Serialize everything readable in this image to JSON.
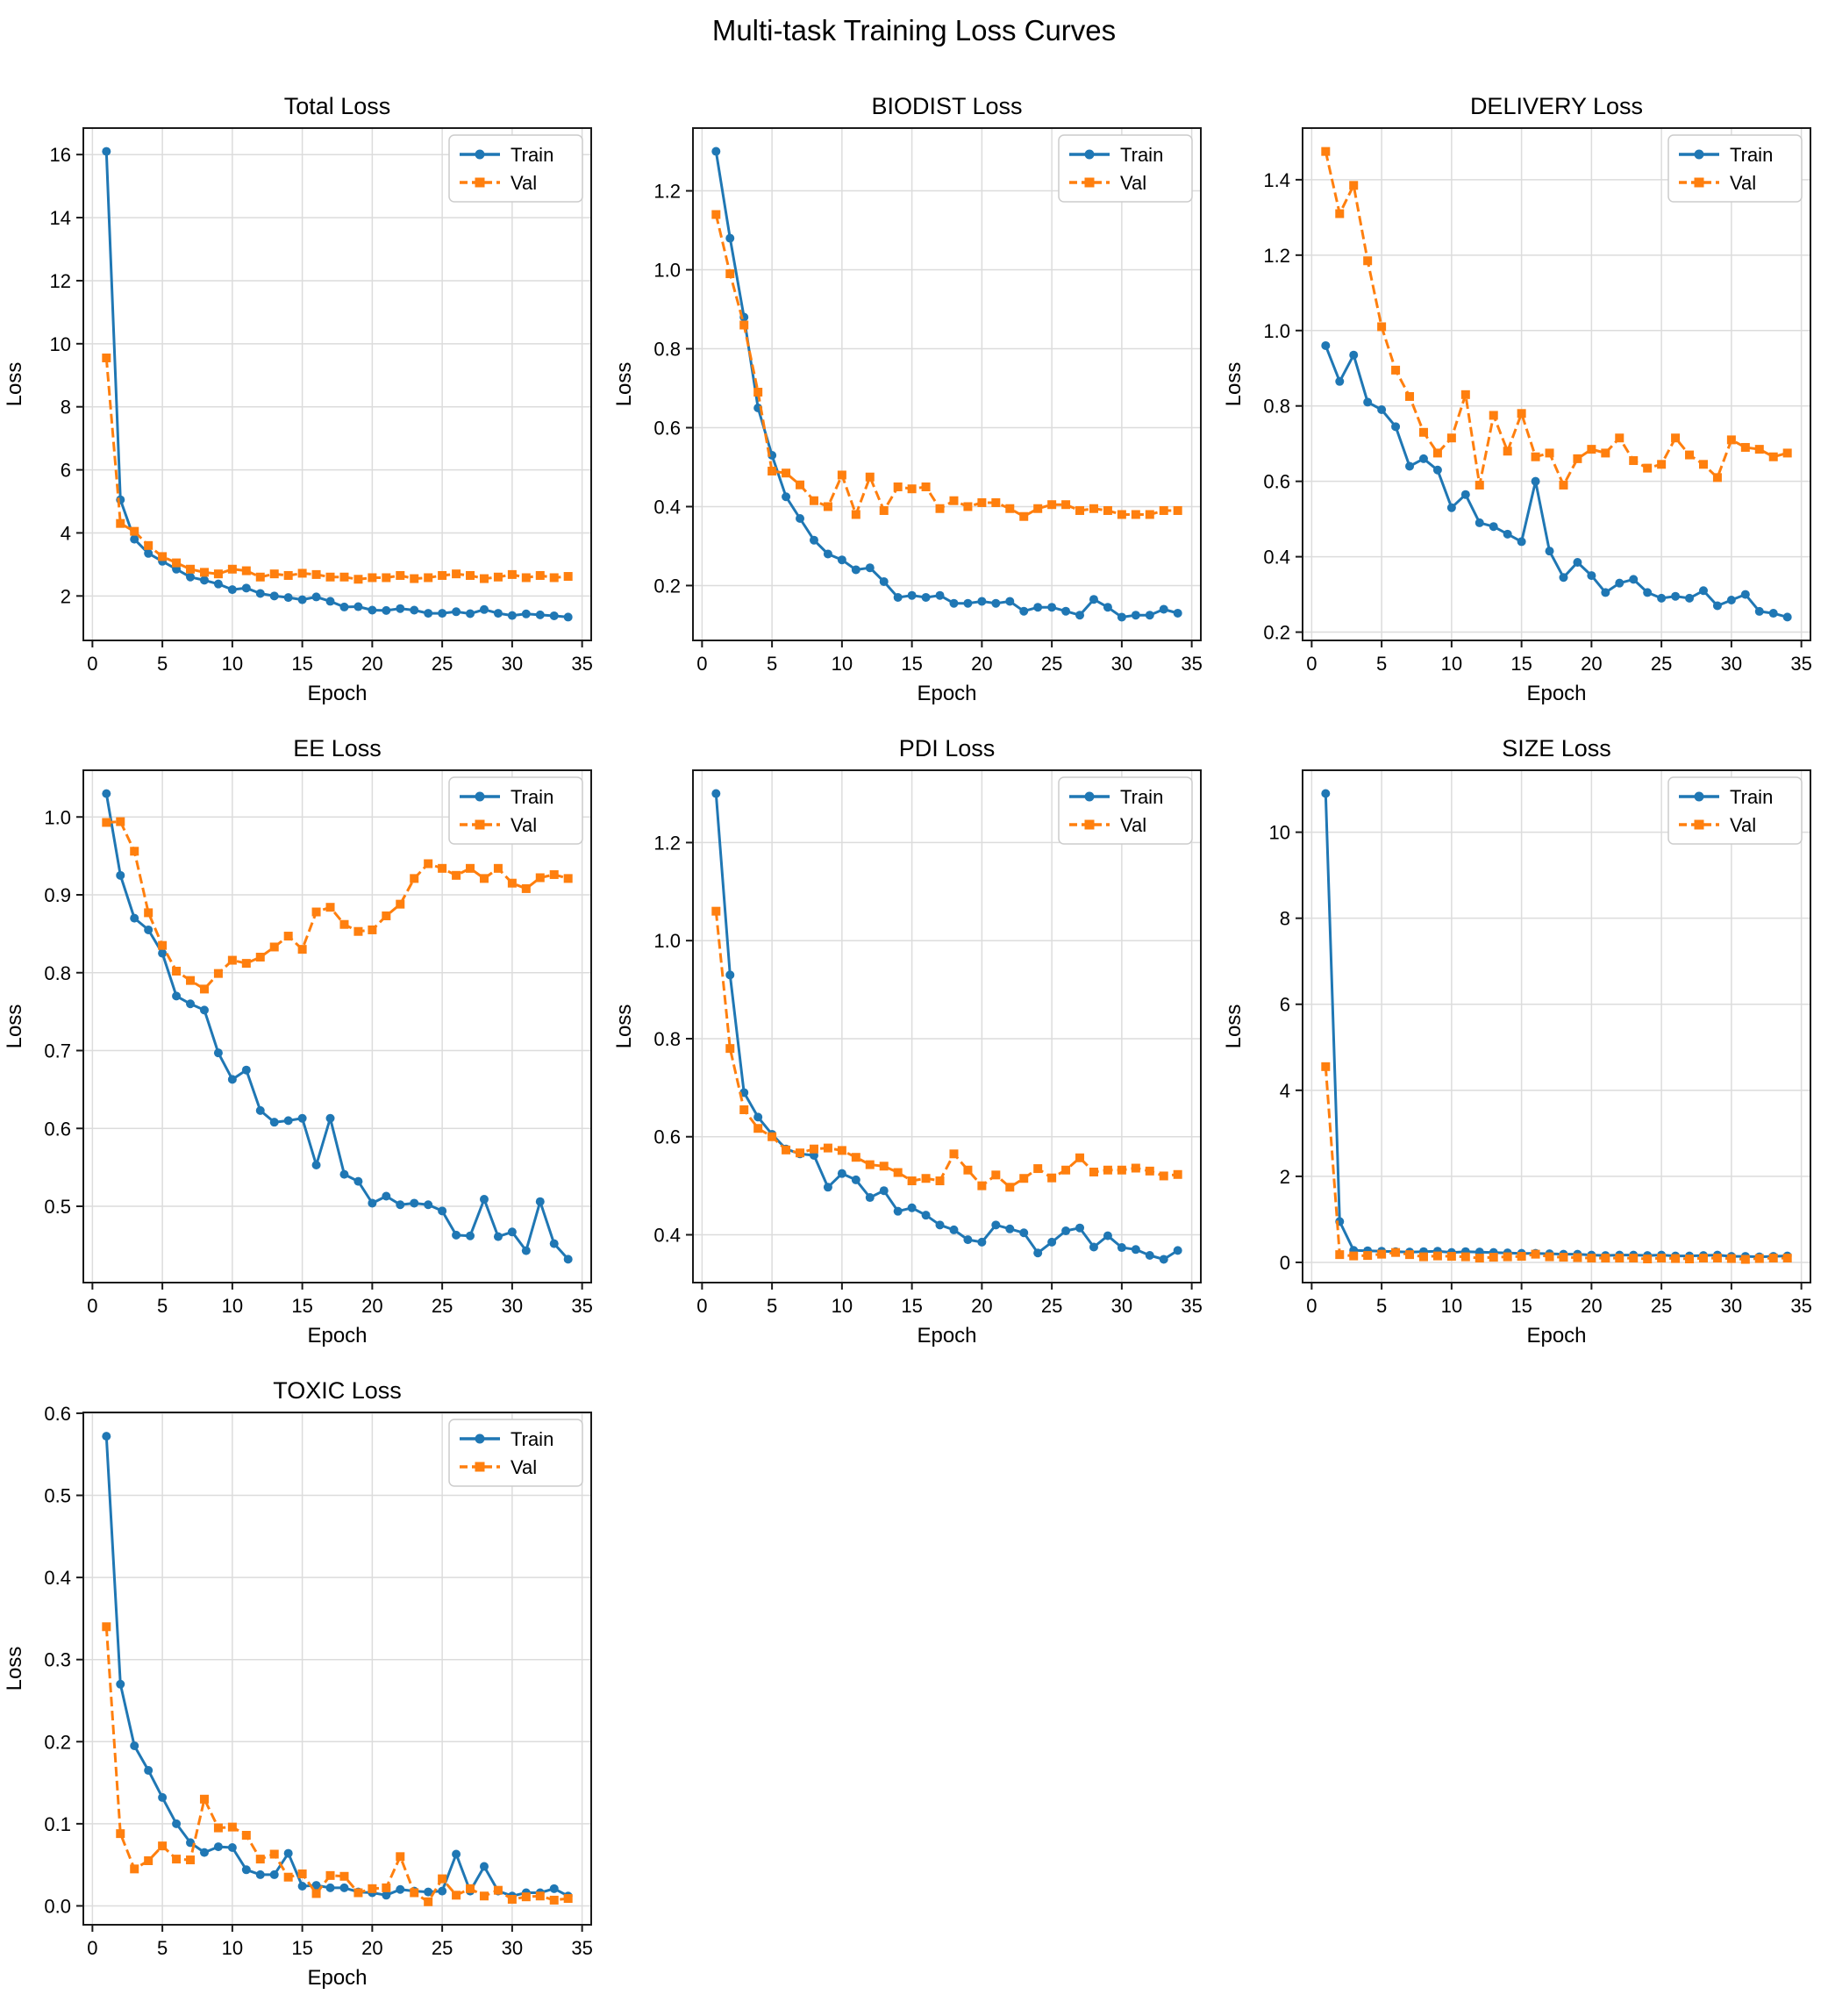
{
  "page": {
    "title": "Multi-task Training Loss Curves"
  },
  "style": {
    "train_color": "#1f77b4",
    "val_color": "#ff7f0e",
    "grid_color": "#dcdcdc",
    "axis_color": "#1a1a1a",
    "legend_border_color": "#cccccc",
    "background": "#ffffff"
  },
  "chart_data": [
    {
      "type": "line",
      "title": "Total Loss",
      "xlabel": "Epoch",
      "ylabel": "Loss",
      "grid": true,
      "legend_position": "upper right",
      "xlim": [
        -0.65,
        35.65
      ],
      "ylim": [
        0.59,
        16.84
      ],
      "xticks": [
        0,
        5,
        10,
        15,
        20,
        25,
        30,
        35
      ],
      "xtick_labels": [
        "0",
        "5",
        "10",
        "15",
        "20",
        "25",
        "30",
        "35"
      ],
      "yticks": [
        2,
        4,
        6,
        8,
        10,
        12,
        14,
        16
      ],
      "ytick_labels": [
        "2",
        "4",
        "6",
        "8",
        "10",
        "12",
        "14",
        "16"
      ],
      "x": [
        1,
        2,
        3,
        4,
        5,
        6,
        7,
        8,
        9,
        10,
        11,
        12,
        13,
        14,
        15,
        16,
        17,
        18,
        19,
        20,
        21,
        22,
        23,
        24,
        25,
        26,
        27,
        28,
        29,
        30,
        31,
        32,
        33,
        34
      ],
      "series": [
        {
          "name": "Train",
          "style": "solid",
          "marker": "circle",
          "color": "#1f77b4",
          "values": [
            16.1,
            5.05,
            3.8,
            3.35,
            3.1,
            2.85,
            2.6,
            2.5,
            2.38,
            2.2,
            2.25,
            2.08,
            2.0,
            1.95,
            1.88,
            1.97,
            1.83,
            1.65,
            1.66,
            1.55,
            1.54,
            1.6,
            1.55,
            1.45,
            1.45,
            1.5,
            1.44,
            1.57,
            1.45,
            1.38,
            1.43,
            1.4,
            1.37,
            1.33
          ]
        },
        {
          "name": "Val",
          "style": "dashed",
          "marker": "square",
          "color": "#ff7f0e",
          "values": [
            9.55,
            4.3,
            4.05,
            3.6,
            3.25,
            3.05,
            2.85,
            2.75,
            2.7,
            2.85,
            2.8,
            2.6,
            2.7,
            2.65,
            2.72,
            2.68,
            2.6,
            2.6,
            2.53,
            2.58,
            2.58,
            2.65,
            2.55,
            2.58,
            2.65,
            2.7,
            2.65,
            2.55,
            2.6,
            2.68,
            2.58,
            2.65,
            2.58,
            2.62
          ]
        }
      ]
    },
    {
      "type": "line",
      "title": "BIODIST Loss",
      "xlabel": "Epoch",
      "ylabel": "Loss",
      "grid": true,
      "legend_position": "upper right",
      "xlim": [
        -0.65,
        35.65
      ],
      "ylim": [
        0.061,
        1.359
      ],
      "xticks": [
        0,
        5,
        10,
        15,
        20,
        25,
        30,
        35
      ],
      "xtick_labels": [
        "0",
        "5",
        "10",
        "15",
        "20",
        "25",
        "30",
        "35"
      ],
      "yticks": [
        0.2,
        0.4,
        0.6,
        0.8,
        1.0,
        1.2
      ],
      "ytick_labels": [
        "0.2",
        "0.4",
        "0.6",
        "0.8",
        "1.0",
        "1.2"
      ],
      "x": [
        1,
        2,
        3,
        4,
        5,
        6,
        7,
        8,
        9,
        10,
        11,
        12,
        13,
        14,
        15,
        16,
        17,
        18,
        19,
        20,
        21,
        22,
        23,
        24,
        25,
        26,
        27,
        28,
        29,
        30,
        31,
        32,
        33,
        34
      ],
      "series": [
        {
          "name": "Train",
          "style": "solid",
          "marker": "circle",
          "color": "#1f77b4",
          "values": [
            1.3,
            1.08,
            0.88,
            0.65,
            0.53,
            0.425,
            0.37,
            0.315,
            0.28,
            0.265,
            0.24,
            0.245,
            0.21,
            0.17,
            0.175,
            0.17,
            0.175,
            0.155,
            0.155,
            0.16,
            0.155,
            0.16,
            0.135,
            0.145,
            0.145,
            0.135,
            0.125,
            0.165,
            0.145,
            0.12,
            0.125,
            0.125,
            0.14,
            0.13
          ]
        },
        {
          "name": "Val",
          "style": "dashed",
          "marker": "square",
          "color": "#ff7f0e",
          "values": [
            1.14,
            0.99,
            0.86,
            0.69,
            0.49,
            0.485,
            0.455,
            0.415,
            0.4,
            0.48,
            0.38,
            0.475,
            0.39,
            0.45,
            0.445,
            0.45,
            0.395,
            0.415,
            0.4,
            0.41,
            0.41,
            0.395,
            0.375,
            0.395,
            0.405,
            0.405,
            0.39,
            0.395,
            0.39,
            0.38,
            0.38,
            0.38,
            0.39,
            0.39
          ]
        }
      ]
    },
    {
      "type": "line",
      "title": "DELIVERY Loss",
      "xlabel": "Epoch",
      "ylabel": "Loss",
      "grid": true,
      "legend_position": "upper right",
      "xlim": [
        -0.65,
        35.65
      ],
      "ylim": [
        0.178,
        1.537
      ],
      "xticks": [
        0,
        5,
        10,
        15,
        20,
        25,
        30,
        35
      ],
      "xtick_labels": [
        "0",
        "5",
        "10",
        "15",
        "20",
        "25",
        "30",
        "35"
      ],
      "yticks": [
        0.2,
        0.4,
        0.6,
        0.8,
        1.0,
        1.2,
        1.4
      ],
      "ytick_labels": [
        "0.2",
        "0.4",
        "0.6",
        "0.8",
        "1.0",
        "1.2",
        "1.4"
      ],
      "x": [
        1,
        2,
        3,
        4,
        5,
        6,
        7,
        8,
        9,
        10,
        11,
        12,
        13,
        14,
        15,
        16,
        17,
        18,
        19,
        20,
        21,
        22,
        23,
        24,
        25,
        26,
        27,
        28,
        29,
        30,
        31,
        32,
        33,
        34
      ],
      "series": [
        {
          "name": "Train",
          "style": "solid",
          "marker": "circle",
          "color": "#1f77b4",
          "values": [
            0.96,
            0.865,
            0.935,
            0.81,
            0.79,
            0.745,
            0.64,
            0.66,
            0.63,
            0.53,
            0.565,
            0.49,
            0.48,
            0.46,
            0.44,
            0.6,
            0.415,
            0.345,
            0.385,
            0.35,
            0.305,
            0.33,
            0.34,
            0.305,
            0.29,
            0.295,
            0.29,
            0.31,
            0.27,
            0.285,
            0.3,
            0.255,
            0.25,
            0.24
          ]
        },
        {
          "name": "Val",
          "style": "dashed",
          "marker": "square",
          "color": "#ff7f0e",
          "values": [
            1.475,
            1.31,
            1.385,
            1.185,
            1.01,
            0.895,
            0.825,
            0.73,
            0.675,
            0.715,
            0.83,
            0.59,
            0.775,
            0.68,
            0.78,
            0.665,
            0.675,
            0.59,
            0.66,
            0.685,
            0.675,
            0.715,
            0.655,
            0.635,
            0.645,
            0.715,
            0.67,
            0.645,
            0.61,
            0.71,
            0.69,
            0.685,
            0.665,
            0.675
          ]
        }
      ]
    },
    {
      "type": "line",
      "title": "EE Loss",
      "xlabel": "Epoch",
      "ylabel": "Loss",
      "grid": true,
      "legend_position": "upper right",
      "xlim": [
        -0.65,
        35.65
      ],
      "ylim": [
        0.402,
        1.06
      ],
      "xticks": [
        0,
        5,
        10,
        15,
        20,
        25,
        30,
        35
      ],
      "xtick_labels": [
        "0",
        "5",
        "10",
        "15",
        "20",
        "25",
        "30",
        "35"
      ],
      "yticks": [
        0.5,
        0.6,
        0.7,
        0.8,
        0.9,
        1.0
      ],
      "ytick_labels": [
        "0.5",
        "0.6",
        "0.7",
        "0.8",
        "0.9",
        "1.0"
      ],
      "x": [
        1,
        2,
        3,
        4,
        5,
        6,
        7,
        8,
        9,
        10,
        11,
        12,
        13,
        14,
        15,
        16,
        17,
        18,
        19,
        20,
        21,
        22,
        23,
        24,
        25,
        26,
        27,
        28,
        29,
        30,
        31,
        32,
        33,
        34
      ],
      "series": [
        {
          "name": "Train",
          "style": "solid",
          "marker": "circle",
          "color": "#1f77b4",
          "values": [
            1.03,
            0.925,
            0.87,
            0.855,
            0.825,
            0.77,
            0.76,
            0.752,
            0.697,
            0.663,
            0.675,
            0.623,
            0.608,
            0.61,
            0.613,
            0.553,
            0.613,
            0.541,
            0.532,
            0.504,
            0.513,
            0.502,
            0.504,
            0.502,
            0.494,
            0.463,
            0.462,
            0.509,
            0.461,
            0.467,
            0.443,
            0.506,
            0.452,
            0.432
          ]
        },
        {
          "name": "Val",
          "style": "dashed",
          "marker": "square",
          "color": "#ff7f0e",
          "values": [
            0.993,
            0.994,
            0.956,
            0.877,
            0.835,
            0.802,
            0.79,
            0.779,
            0.799,
            0.816,
            0.812,
            0.82,
            0.833,
            0.847,
            0.83,
            0.878,
            0.884,
            0.862,
            0.853,
            0.855,
            0.873,
            0.888,
            0.921,
            0.94,
            0.934,
            0.925,
            0.934,
            0.921,
            0.934,
            0.915,
            0.908,
            0.922,
            0.926,
            0.921
          ]
        }
      ]
    },
    {
      "type": "line",
      "title": "PDI Loss",
      "xlabel": "Epoch",
      "ylabel": "Loss",
      "grid": true,
      "legend_position": "upper right",
      "xlim": [
        -0.65,
        35.65
      ],
      "ylim": [
        0.3025,
        1.3475
      ],
      "xticks": [
        0,
        5,
        10,
        15,
        20,
        25,
        30,
        35
      ],
      "xtick_labels": [
        "0",
        "5",
        "10",
        "15",
        "20",
        "25",
        "30",
        "35"
      ],
      "yticks": [
        0.4,
        0.6,
        0.8,
        1.0,
        1.2
      ],
      "ytick_labels": [
        "0.4",
        "0.6",
        "0.8",
        "1.0",
        "1.2"
      ],
      "x": [
        1,
        2,
        3,
        4,
        5,
        6,
        7,
        8,
        9,
        10,
        11,
        12,
        13,
        14,
        15,
        16,
        17,
        18,
        19,
        20,
        21,
        22,
        23,
        24,
        25,
        26,
        27,
        28,
        29,
        30,
        31,
        32,
        33,
        34
      ],
      "series": [
        {
          "name": "Train",
          "style": "solid",
          "marker": "circle",
          "color": "#1f77b4",
          "values": [
            1.3,
            0.93,
            0.69,
            0.64,
            0.605,
            0.575,
            0.565,
            0.562,
            0.497,
            0.525,
            0.512,
            0.476,
            0.49,
            0.448,
            0.455,
            0.44,
            0.42,
            0.41,
            0.39,
            0.385,
            0.42,
            0.412,
            0.404,
            0.363,
            0.385,
            0.408,
            0.414,
            0.375,
            0.398,
            0.374,
            0.37,
            0.358,
            0.35,
            0.368
          ]
        },
        {
          "name": "Val",
          "style": "dashed",
          "marker": "square",
          "color": "#ff7f0e",
          "values": [
            1.06,
            0.78,
            0.655,
            0.617,
            0.6,
            0.573,
            0.567,
            0.575,
            0.577,
            0.572,
            0.558,
            0.543,
            0.54,
            0.527,
            0.51,
            0.515,
            0.51,
            0.565,
            0.532,
            0.5,
            0.522,
            0.497,
            0.515,
            0.535,
            0.516,
            0.532,
            0.557,
            0.528,
            0.532,
            0.532,
            0.536,
            0.53,
            0.52,
            0.523
          ]
        }
      ]
    },
    {
      "type": "line",
      "title": "SIZE Loss",
      "xlabel": "Epoch",
      "ylabel": "Loss",
      "grid": true,
      "legend_position": "upper right",
      "xlim": [
        -0.65,
        35.65
      ],
      "ylim": [
        -0.47,
        11.44
      ],
      "xticks": [
        0,
        5,
        10,
        15,
        20,
        25,
        30,
        35
      ],
      "xtick_labels": [
        "0",
        "5",
        "10",
        "15",
        "20",
        "25",
        "30",
        "35"
      ],
      "yticks": [
        0,
        2,
        4,
        6,
        8,
        10
      ],
      "ytick_labels": [
        "0",
        "2",
        "4",
        "6",
        "8",
        "10"
      ],
      "x": [
        1,
        2,
        3,
        4,
        5,
        6,
        7,
        8,
        9,
        10,
        11,
        12,
        13,
        14,
        15,
        16,
        17,
        18,
        19,
        20,
        21,
        22,
        23,
        24,
        25,
        26,
        27,
        28,
        29,
        30,
        31,
        32,
        33,
        34
      ],
      "series": [
        {
          "name": "Train",
          "style": "solid",
          "marker": "circle",
          "color": "#1f77b4",
          "values": [
            10.9,
            0.95,
            0.28,
            0.27,
            0.26,
            0.25,
            0.24,
            0.25,
            0.26,
            0.23,
            0.25,
            0.24,
            0.23,
            0.22,
            0.21,
            0.21,
            0.2,
            0.19,
            0.19,
            0.17,
            0.16,
            0.17,
            0.17,
            0.16,
            0.17,
            0.15,
            0.15,
            0.16,
            0.17,
            0.14,
            0.14,
            0.13,
            0.14,
            0.15
          ]
        },
        {
          "name": "Val",
          "style": "dashed",
          "marker": "square",
          "color": "#ff7f0e",
          "values": [
            4.55,
            0.18,
            0.15,
            0.16,
            0.19,
            0.23,
            0.18,
            0.13,
            0.15,
            0.14,
            0.13,
            0.1,
            0.12,
            0.13,
            0.14,
            0.19,
            0.13,
            0.12,
            0.11,
            0.1,
            0.1,
            0.1,
            0.1,
            0.08,
            0.1,
            0.09,
            0.08,
            0.1,
            0.1,
            0.09,
            0.07,
            0.09,
            0.1,
            0.1
          ]
        }
      ]
    },
    {
      "type": "line",
      "title": "TOXIC Loss",
      "xlabel": "Epoch",
      "ylabel": "Loss",
      "grid": true,
      "legend_position": "upper right",
      "xlim": [
        -0.65,
        35.65
      ],
      "ylim": [
        -0.023,
        0.601
      ],
      "xticks": [
        0,
        5,
        10,
        15,
        20,
        25,
        30,
        35
      ],
      "xtick_labels": [
        "0",
        "5",
        "10",
        "15",
        "20",
        "25",
        "30",
        "35"
      ],
      "yticks": [
        0.0,
        0.1,
        0.2,
        0.3,
        0.4,
        0.5,
        0.6
      ],
      "ytick_labels": [
        "0.0",
        "0.1",
        "0.2",
        "0.3",
        "0.4",
        "0.5",
        "0.6"
      ],
      "x": [
        1,
        2,
        3,
        4,
        5,
        6,
        7,
        8,
        9,
        10,
        11,
        12,
        13,
        14,
        15,
        16,
        17,
        18,
        19,
        20,
        21,
        22,
        23,
        24,
        25,
        26,
        27,
        28,
        29,
        30,
        31,
        32,
        33,
        34
      ],
      "series": [
        {
          "name": "Train",
          "style": "solid",
          "marker": "circle",
          "color": "#1f77b4",
          "values": [
            0.572,
            0.27,
            0.195,
            0.165,
            0.132,
            0.1,
            0.077,
            0.065,
            0.072,
            0.071,
            0.044,
            0.038,
            0.038,
            0.064,
            0.024,
            0.025,
            0.022,
            0.022,
            0.017,
            0.016,
            0.013,
            0.02,
            0.018,
            0.017,
            0.018,
            0.063,
            0.018,
            0.048,
            0.018,
            0.012,
            0.016,
            0.016,
            0.021,
            0.012
          ]
        },
        {
          "name": "Val",
          "style": "dashed",
          "marker": "square",
          "color": "#ff7f0e",
          "values": [
            0.34,
            0.088,
            0.045,
            0.055,
            0.073,
            0.057,
            0.056,
            0.13,
            0.095,
            0.096,
            0.086,
            0.057,
            0.063,
            0.035,
            0.039,
            0.015,
            0.037,
            0.036,
            0.016,
            0.021,
            0.022,
            0.06,
            0.016,
            0.005,
            0.033,
            0.013,
            0.021,
            0.012,
            0.019,
            0.008,
            0.011,
            0.012,
            0.007,
            0.009
          ]
        }
      ]
    }
  ]
}
